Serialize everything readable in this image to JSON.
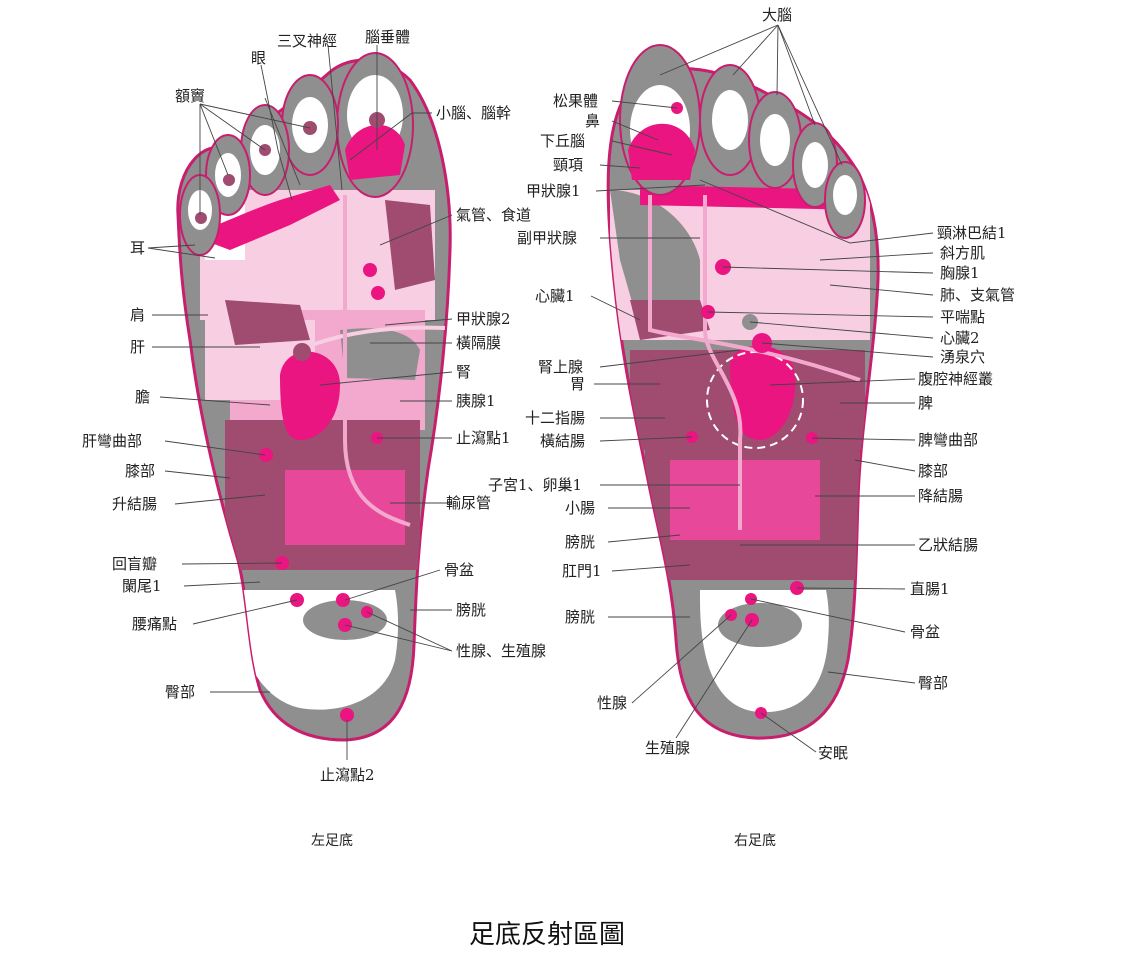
{
  "title": "足底反射區圖",
  "colors": {
    "outline": "#c81e6e",
    "gray": "#8f8f8f",
    "mauve": "#a04b70",
    "pink": "#e7489a",
    "hot_pink": "#ea1580",
    "light_pink": "#f3a9cd",
    "pale_pink": "#f8cfe2"
  },
  "left_foot": {
    "caption": "左足底",
    "labels": {
      "eyes": "眼",
      "trigeminal": "三叉神經",
      "pituitary": "腦垂體",
      "sinus": "額竇",
      "cerebellum": "小腦、腦幹",
      "ear": "耳",
      "trachea": "氣管、食道",
      "shoulder": "肩",
      "thyroid2": "甲狀腺2",
      "liver": "肝",
      "diaphragm": "橫隔膜",
      "kidney": "腎",
      "gallbladder": "膽",
      "pancreas": "胰腺1",
      "hepatic_flexure": "肝彎曲部",
      "diarrhea": "止瀉點1",
      "knee": "膝部",
      "ascending_colon": "升結腸",
      "ureter": "輸尿管",
      "ileocecal": "回盲瓣",
      "pelvis": "骨盆",
      "coccyx": "闌尾1",
      "bladder": "膀胱",
      "backache": "腰痛點",
      "gonads": "性腺、生殖腺",
      "buttocks": "臀部",
      "diarrhea2": "止瀉點2"
    }
  },
  "right_foot": {
    "caption": "右足底",
    "labels": {
      "brain": "大腦",
      "pineal": "松果體",
      "nose": "鼻",
      "hypothalamus": "下丘腦",
      "neck": "頸項",
      "thyroid1": "甲狀腺1",
      "cervical_lymph": "頸淋巴結1",
      "trapezius": "斜方肌",
      "parathyroid": "副甲狀腺",
      "thymus": "胸腺1",
      "heart1": "心臟1",
      "lung": "肺、支氣管",
      "asthma": "平喘點",
      "heart2": "心臟2",
      "yongquan": "湧泉穴",
      "adrenal": "腎上腺",
      "celiac_plexus": "腹腔神經叢",
      "stomach": "胃",
      "spleen": "脾",
      "duodenum": "十二指腸",
      "transverse_colon": "橫結腸",
      "splenic_flexure": "脾彎曲部",
      "knee": "膝部",
      "uterus": "子宮1、卵巢1",
      "descending_colon": "降結腸",
      "small_intestine": "小腸",
      "bladder_upper": "膀胱",
      "sigmoid": "乙狀結腸",
      "anus": "肛門1",
      "rectum": "直腸1",
      "bladder_lower": "膀胱",
      "pelvis": "骨盆",
      "buttocks": "臀部",
      "gonads": "性腺",
      "reproductive": "生殖腺",
      "insomnia": "安眠"
    }
  }
}
